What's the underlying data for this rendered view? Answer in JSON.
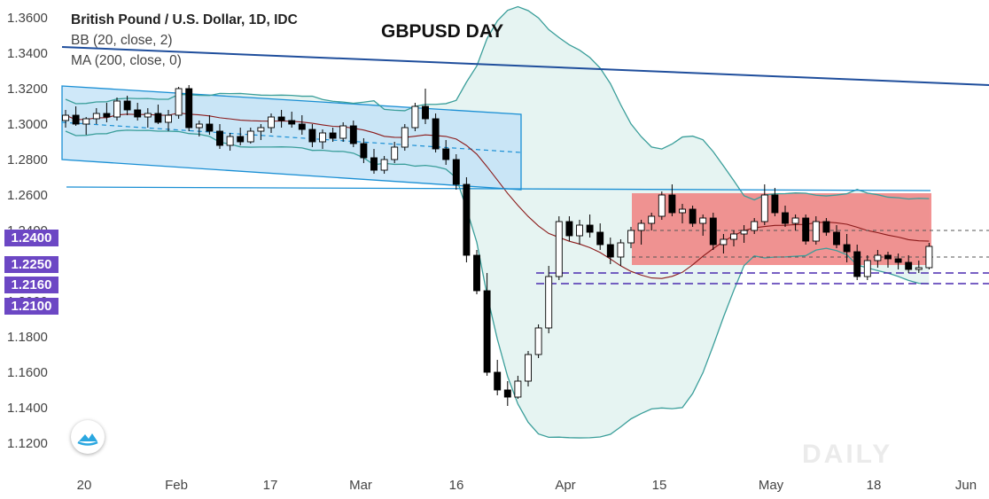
{
  "header": {
    "symbol": "British Pound / U.S. Dollar, 1D, IDC",
    "bb_label": "BB (20, close, 2)",
    "ma_label": "MA (200, close, 0)",
    "title": "GBPUSD DAY"
  },
  "price_tags": [
    "1.2400",
    "1.2250",
    "1.2160",
    "1.2100"
  ],
  "watermark": "DAILY",
  "colors": {
    "bull_candle": "#ffffff",
    "bear_candle": "#000000",
    "bb_band": "#3a9e9a",
    "bb_basis": "#8b1a1a",
    "channel": "#1a8fd4",
    "trendline": "#1f4e9c",
    "range_box": "#f08080",
    "price_tag": "#6c47c4"
  },
  "chart_data": {
    "type": "candlestick",
    "ylim": [
      1.11,
      1.37
    ],
    "yticks": [
      "1.1200",
      "1.1400",
      "1.1600",
      "1.1800",
      "1.2000",
      "1.2200",
      "1.2400",
      "1.2600",
      "1.2800",
      "1.3000",
      "1.3200",
      "1.3400",
      "1.3600"
    ],
    "xticks": [
      "20",
      "Feb",
      "17",
      "Mar",
      "16",
      "Apr",
      "15",
      "May",
      "18",
      "Jun"
    ],
    "grid": false,
    "horizontal_levels": [
      1.24,
      1.225,
      1.216,
      1.21
    ],
    "candles": [
      [
        1.302,
        1.308,
        1.298,
        1.305
      ],
      [
        1.305,
        1.31,
        1.299,
        1.3
      ],
      [
        1.3,
        1.304,
        1.294,
        1.303
      ],
      [
        1.303,
        1.309,
        1.3,
        1.306
      ],
      [
        1.306,
        1.312,
        1.301,
        1.304
      ],
      [
        1.304,
        1.315,
        1.302,
        1.313
      ],
      [
        1.313,
        1.316,
        1.305,
        1.308
      ],
      [
        1.308,
        1.312,
        1.302,
        1.304
      ],
      [
        1.304,
        1.309,
        1.298,
        1.306
      ],
      [
        1.306,
        1.311,
        1.3,
        1.301
      ],
      [
        1.301,
        1.308,
        1.296,
        1.305
      ],
      [
        1.305,
        1.321,
        1.303,
        1.32
      ],
      [
        1.32,
        1.322,
        1.296,
        1.298
      ],
      [
        1.298,
        1.302,
        1.293,
        1.3
      ],
      [
        1.3,
        1.305,
        1.294,
        1.296
      ],
      [
        1.296,
        1.3,
        1.286,
        1.288
      ],
      [
        1.288,
        1.295,
        1.285,
        1.293
      ],
      [
        1.293,
        1.298,
        1.288,
        1.29
      ],
      [
        1.29,
        1.298,
        1.289,
        1.296
      ],
      [
        1.296,
        1.3,
        1.291,
        1.298
      ],
      [
        1.298,
        1.306,
        1.295,
        1.304
      ],
      [
        1.304,
        1.308,
        1.298,
        1.302
      ],
      [
        1.302,
        1.307,
        1.298,
        1.3
      ],
      [
        1.3,
        1.305,
        1.294,
        1.297
      ],
      [
        1.297,
        1.3,
        1.287,
        1.29
      ],
      [
        1.29,
        1.297,
        1.286,
        1.295
      ],
      [
        1.295,
        1.298,
        1.29,
        1.292
      ],
      [
        1.292,
        1.301,
        1.29,
        1.299
      ],
      [
        1.299,
        1.302,
        1.287,
        1.289
      ],
      [
        1.289,
        1.292,
        1.278,
        1.281
      ],
      [
        1.281,
        1.286,
        1.272,
        1.274
      ],
      [
        1.274,
        1.282,
        1.272,
        1.28
      ],
      [
        1.28,
        1.29,
        1.278,
        1.287
      ],
      [
        1.287,
        1.3,
        1.285,
        1.298
      ],
      [
        1.298,
        1.312,
        1.296,
        1.31
      ],
      [
        1.31,
        1.32,
        1.3,
        1.303
      ],
      [
        1.303,
        1.306,
        1.284,
        1.286
      ],
      [
        1.286,
        1.291,
        1.277,
        1.28
      ],
      [
        1.28,
        1.283,
        1.263,
        1.266
      ],
      [
        1.266,
        1.27,
        1.222,
        1.226
      ],
      [
        1.226,
        1.229,
        1.204,
        1.206
      ],
      [
        1.206,
        1.216,
        1.158,
        1.16
      ],
      [
        1.16,
        1.167,
        1.147,
        1.15
      ],
      [
        1.15,
        1.155,
        1.141,
        1.146
      ],
      [
        1.146,
        1.158,
        1.145,
        1.155
      ],
      [
        1.155,
        1.172,
        1.152,
        1.17
      ],
      [
        1.17,
        1.187,
        1.168,
        1.185
      ],
      [
        1.185,
        1.22,
        1.182,
        1.214
      ],
      [
        1.214,
        1.248,
        1.212,
        1.245
      ],
      [
        1.245,
        1.248,
        1.234,
        1.237
      ],
      [
        1.237,
        1.246,
        1.232,
        1.243
      ],
      [
        1.243,
        1.249,
        1.236,
        1.239
      ],
      [
        1.239,
        1.244,
        1.229,
        1.232
      ],
      [
        1.232,
        1.236,
        1.221,
        1.225
      ],
      [
        1.225,
        1.235,
        1.22,
        1.233
      ],
      [
        1.233,
        1.242,
        1.23,
        1.24
      ],
      [
        1.24,
        1.246,
        1.232,
        1.244
      ],
      [
        1.244,
        1.25,
        1.24,
        1.248
      ],
      [
        1.248,
        1.262,
        1.246,
        1.26
      ],
      [
        1.26,
        1.266,
        1.248,
        1.25
      ],
      [
        1.25,
        1.255,
        1.244,
        1.252
      ],
      [
        1.252,
        1.254,
        1.242,
        1.244
      ],
      [
        1.244,
        1.249,
        1.237,
        1.247
      ],
      [
        1.247,
        1.25,
        1.229,
        1.232
      ],
      [
        1.232,
        1.238,
        1.227,
        1.235
      ],
      [
        1.235,
        1.24,
        1.231,
        1.238
      ],
      [
        1.238,
        1.243,
        1.233,
        1.24
      ],
      [
        1.24,
        1.247,
        1.238,
        1.245
      ],
      [
        1.245,
        1.266,
        1.243,
        1.26
      ],
      [
        1.26,
        1.264,
        1.248,
        1.25
      ],
      [
        1.25,
        1.254,
        1.242,
        1.244
      ],
      [
        1.244,
        1.249,
        1.24,
        1.247
      ],
      [
        1.247,
        1.249,
        1.232,
        1.234
      ],
      [
        1.234,
        1.248,
        1.232,
        1.245
      ],
      [
        1.245,
        1.247,
        1.237,
        1.239
      ],
      [
        1.239,
        1.243,
        1.23,
        1.232
      ],
      [
        1.232,
        1.238,
        1.222,
        1.228
      ],
      [
        1.228,
        1.232,
        1.212,
        1.214
      ],
      [
        1.214,
        1.226,
        1.212,
        1.223
      ],
      [
        1.223,
        1.229,
        1.219,
        1.226
      ],
      [
        1.226,
        1.228,
        1.219,
        1.224
      ],
      [
        1.224,
        1.227,
        1.218,
        1.222
      ],
      [
        1.222,
        1.226,
        1.216,
        1.218
      ],
      [
        1.218,
        1.223,
        1.216,
        1.219
      ],
      [
        1.219,
        1.233,
        1.218,
        1.231
      ]
    ]
  }
}
